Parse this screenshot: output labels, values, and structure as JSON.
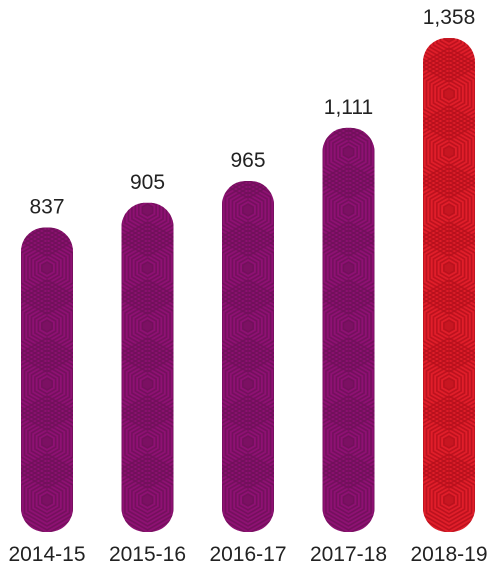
{
  "chart_data": {
    "type": "bar",
    "title": "",
    "xlabel": "",
    "ylabel": "",
    "categories": [
      "2014-15",
      "2015-16",
      "2016-17",
      "2017-18",
      "2018-19"
    ],
    "values": [
      837,
      905,
      965,
      1111,
      1358
    ],
    "value_labels": [
      "837",
      "905",
      "965",
      "1,111",
      "1,358"
    ],
    "ylim": [
      0,
      1358
    ],
    "grid": false,
    "legend": "none",
    "bar_colors": [
      "#8e1173",
      "#8e1173",
      "#8e1173",
      "#8e1173",
      "#e01e2a"
    ],
    "pattern_colors": [
      "#701059",
      "#701059",
      "#701059",
      "#701059",
      "#b5101c"
    ],
    "text_color": "#222222"
  }
}
